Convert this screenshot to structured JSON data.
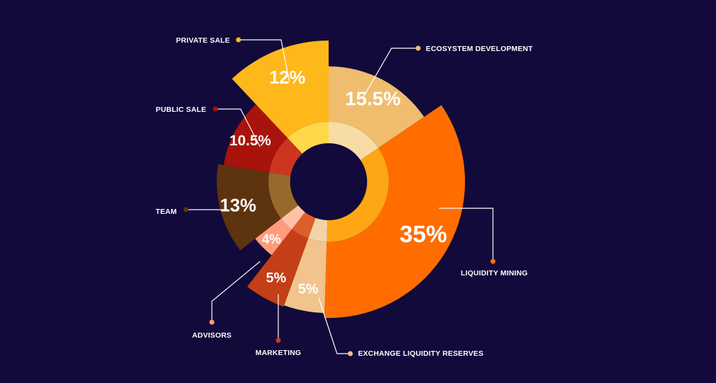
{
  "chart_data": {
    "type": "pie",
    "variant": "rose-donut",
    "title": "",
    "slices": [
      {
        "label": "ECOSYSTEM DEVELOPMENT",
        "value": 15.5,
        "value_label": "15.5%",
        "color": "#f0bd6e",
        "inner_color": "#f7dda5"
      },
      {
        "label": "LIQUIDITY MINING",
        "value": 35,
        "value_label": "35%",
        "color": "#ff6d00",
        "inner_color": "#ffa614"
      },
      {
        "label": "EXCHANGE LIQUIDITY RESERVES",
        "value": 5,
        "value_label": "5%",
        "color": "#f0c48c",
        "inner_color": "#f3d4a8"
      },
      {
        "label": "MARKETING",
        "value": 5,
        "value_label": "5%",
        "color": "#c43e16",
        "inner_color": "#de5e2a"
      },
      {
        "label": "ADVISORS",
        "value": 4,
        "value_label": "4%",
        "color": "#ff9c7c",
        "inner_color": "#ffc2a6"
      },
      {
        "label": "TEAM",
        "value": 13,
        "value_label": "13%",
        "color": "#5e3310",
        "inner_color": "#97692a"
      },
      {
        "label": "PUBLIC SALE",
        "value": 10.5,
        "value_label": "10.5%",
        "color": "#a8130b",
        "inner_color": "#cc3520"
      },
      {
        "label": "PRIVATE SALE",
        "value": 12,
        "value_label": "12%",
        "color": "#ffb81a",
        "inner_color": "#ffd84a"
      }
    ],
    "legend": "callout-labels",
    "grid": false
  }
}
